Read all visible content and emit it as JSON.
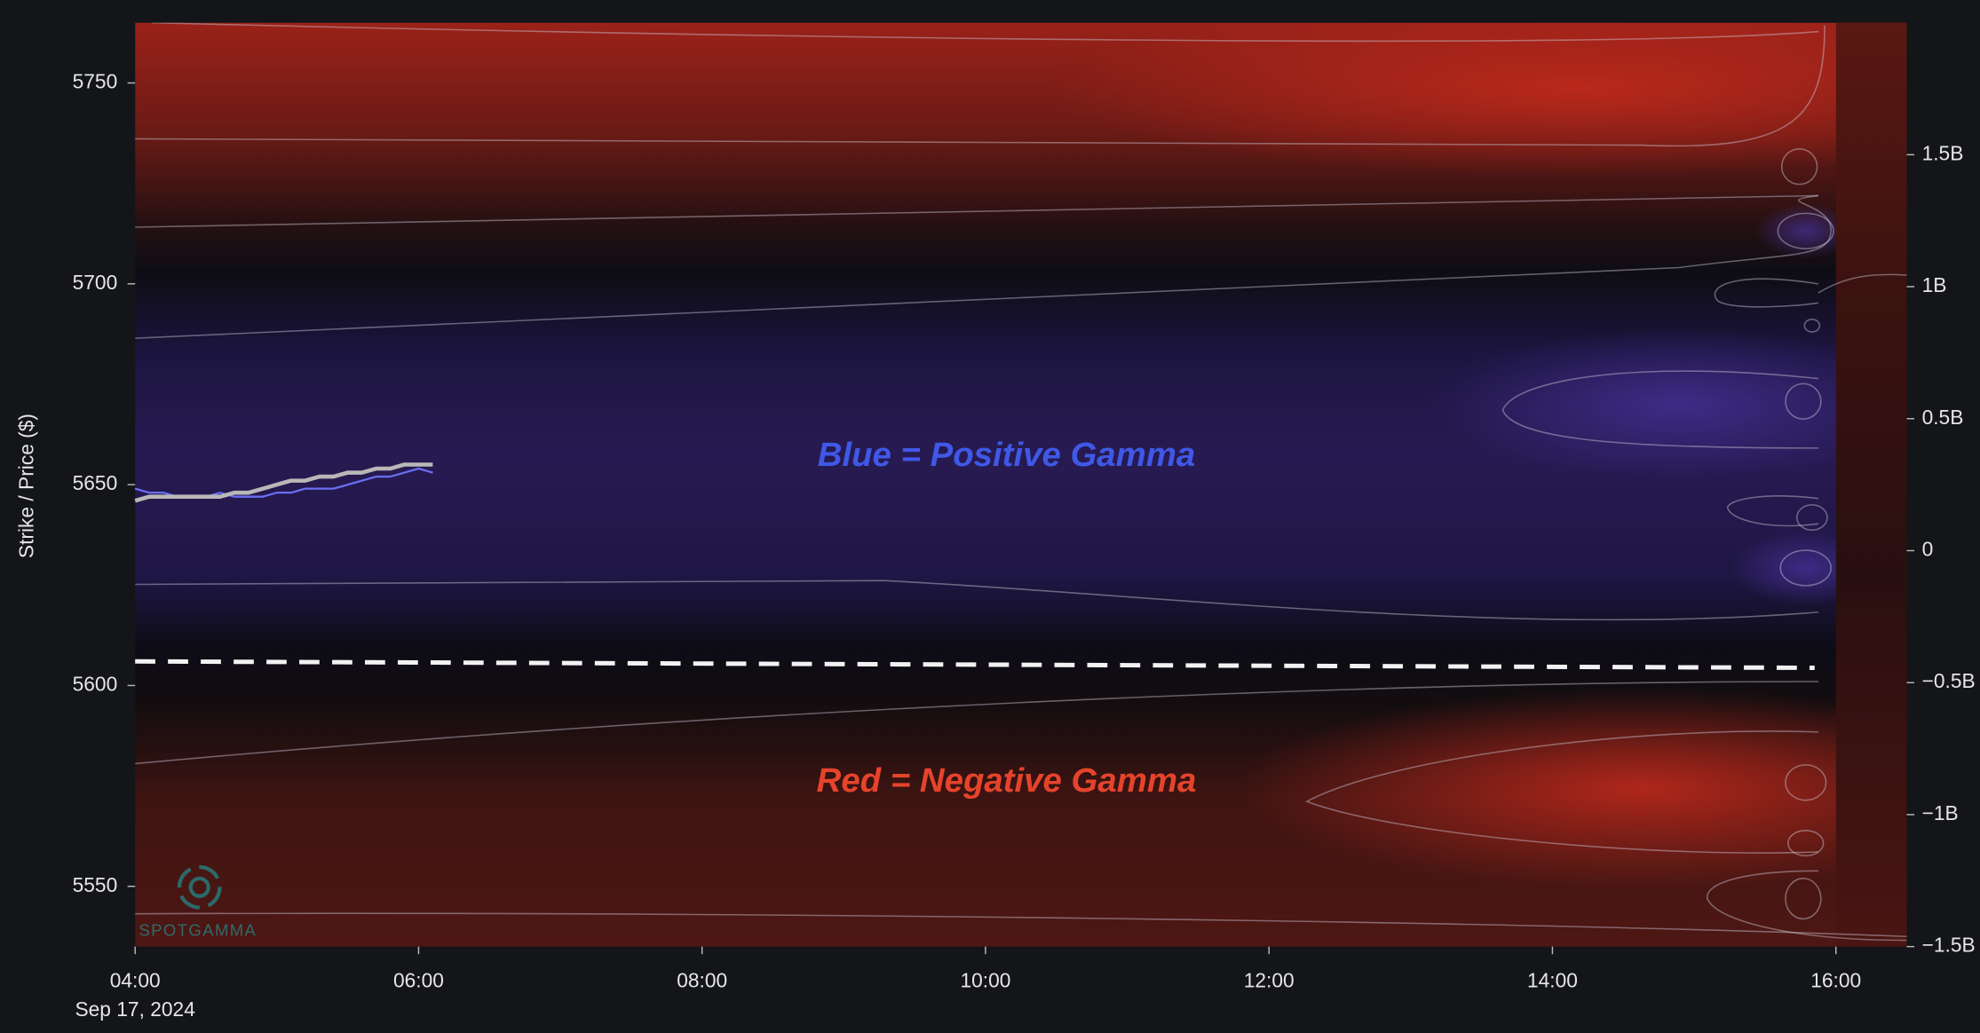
{
  "chart_data": {
    "type": "gamma-heatmap",
    "y_label": "Strike / Price ($)",
    "x_sublabel": "Sep 17, 2024",
    "annotations": [
      {
        "text": "Blue =  Positive Gamma",
        "color": "#3f58e6"
      },
      {
        "text": "Red = Negative Gamma",
        "color": "#e5442b"
      }
    ],
    "watermark": "SPOTGAMMA",
    "xlim": [
      4,
      16.5
    ],
    "xticks": [
      {
        "value": 4,
        "label": "04:00"
      },
      {
        "value": 6,
        "label": "06:00"
      },
      {
        "value": 8,
        "label": "08:00"
      },
      {
        "value": 10,
        "label": "10:00"
      },
      {
        "value": 12,
        "label": "12:00"
      },
      {
        "value": 14,
        "label": "14:00"
      },
      {
        "value": 16,
        "label": "16:00"
      }
    ],
    "ylim": [
      5535,
      5765
    ],
    "yticks": [
      5550,
      5600,
      5650,
      5700,
      5750
    ],
    "y2lim": [
      -1500000000,
      2000000000
    ],
    "y2ticks": [
      {
        "value": 1500000000,
        "label": "1.5B"
      },
      {
        "value": 1000000000,
        "label": "1B"
      },
      {
        "value": 500000000,
        "label": "0.5B"
      },
      {
        "value": 0,
        "label": "0"
      },
      {
        "value": -500000000,
        "label": "−0.5B"
      },
      {
        "value": -1000000000,
        "label": "−1B"
      },
      {
        "value": -1500000000,
        "label": "−1.5B"
      }
    ],
    "x": [
      4.0,
      4.1,
      4.2,
      4.3,
      4.4,
      4.5,
      4.6,
      4.7,
      4.8,
      4.9,
      5.0,
      5.1,
      5.2,
      5.3,
      5.4,
      5.5,
      5.6,
      5.7,
      5.8,
      5.9,
      6.0,
      6.1
    ],
    "series": [
      {
        "color": "#6b6ef2",
        "width": 1.6,
        "values": [
          5649,
          5648,
          5648,
          5647,
          5647,
          5647,
          5648,
          5647,
          5647,
          5647,
          5648,
          5648,
          5649,
          5649,
          5649,
          5650,
          5651,
          5652,
          5652,
          5653,
          5654,
          5653
        ]
      },
      {
        "color": "#b8b8b8",
        "width": 3.2,
        "values": [
          5646,
          5647,
          5647,
          5647,
          5647,
          5647,
          5647,
          5648,
          5648,
          5649,
          5650,
          5651,
          5651,
          5652,
          5652,
          5653,
          5653,
          5654,
          5654,
          5655,
          5655,
          5655
        ]
      },
      {
        "color": "#f2f2f2",
        "width": 3.5,
        "dashed": true,
        "x": [
          4,
          15.85
        ],
        "values": [
          5606,
          5604.4
        ]
      }
    ]
  }
}
